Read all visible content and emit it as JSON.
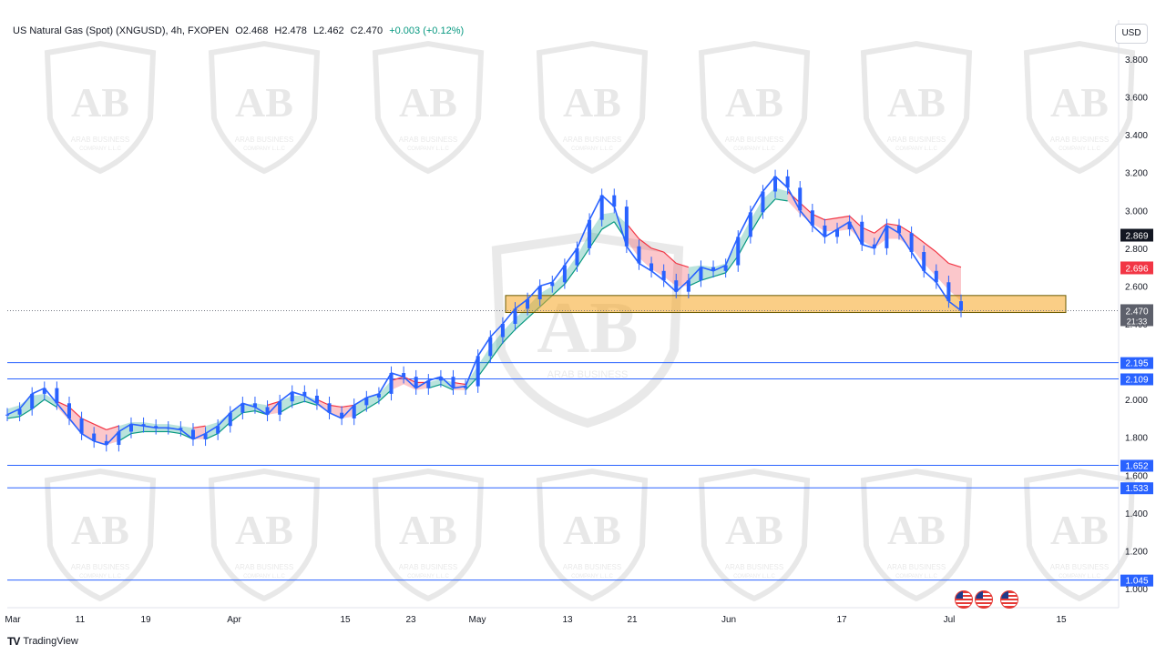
{
  "header": {
    "symbol": "US Natural Gas (Spot) (XNGUSD), 4h, FXOPEN",
    "open": "O2.468",
    "high": "H2.478",
    "low": "L2.462",
    "close": "C2.470",
    "change": "+0.003 (+0.12%)"
  },
  "currency_button": "USD",
  "branding": {
    "logo_text": "TV",
    "name": "TradingView"
  },
  "watermark": {
    "line1": "ARAB BUSINESS",
    "line2": "COMPANY L.L.C"
  },
  "events": [
    "us-flag-icon",
    "us-flag-icon",
    "us-flag-icon"
  ],
  "colors": {
    "candle": "#2962ff",
    "cloud_bull": "#089981",
    "cloud_bear": "#f23645",
    "zone": "#f5a623",
    "hline": "#2962ff",
    "last_price_bg": "#131722"
  },
  "chart_data": {
    "type": "line",
    "title": "",
    "xlabel": "",
    "ylabel": "",
    "ylim": [
      0.93,
      3.95
    ],
    "y_ticks": [
      "3.800",
      "3.600",
      "3.400",
      "3.200",
      "3.000",
      "2.800",
      "2.600",
      "2.400",
      "2.200",
      "2.000",
      "1.800",
      "1.600",
      "1.400",
      "1.200",
      "1.000"
    ],
    "x_ticks": [
      "Mar",
      "11",
      "19",
      "Apr",
      "15",
      "23",
      "May",
      "13",
      "21",
      "Jun",
      "17",
      "Jul",
      "15"
    ],
    "series": [
      {
        "values": [
          1.92,
          1.95,
          2.03,
          2.06,
          1.98,
          1.9,
          1.82,
          1.78,
          1.76,
          1.83,
          1.87,
          1.86,
          1.85,
          1.85,
          1.84,
          1.79,
          1.82,
          1.86,
          1.93,
          1.98,
          1.96,
          1.92,
          1.99,
          2.04,
          2.02,
          1.98,
          1.93,
          1.9,
          1.97,
          2.01,
          2.03,
          2.14,
          2.12,
          2.06,
          2.1,
          2.12,
          2.06,
          2.07,
          2.23,
          2.33,
          2.4,
          2.48,
          2.53,
          2.6,
          2.62,
          2.71,
          2.8,
          2.95,
          3.08,
          3.02,
          2.81,
          2.72,
          2.68,
          2.63,
          2.57,
          2.63,
          2.7,
          2.68,
          2.71,
          2.86,
          2.99,
          3.1,
          3.18,
          3.12,
          3.0,
          2.92,
          2.86,
          2.9,
          2.94,
          2.82,
          2.8,
          2.92,
          2.88,
          2.78,
          2.68,
          2.62,
          2.52,
          2.47
        ]
      }
    ],
    "cloud_upper": [
      1.95,
      1.97,
      2.02,
      2.03,
      1.99,
      1.96,
      1.9,
      1.87,
      1.84,
      1.86,
      1.88,
      1.88,
      1.87,
      1.87,
      1.86,
      1.85,
      1.86,
      1.88,
      1.93,
      1.97,
      1.98,
      1.97,
      1.99,
      2.02,
      2.02,
      2.0,
      1.97,
      1.96,
      1.97,
      2.01,
      2.03,
      2.1,
      2.12,
      2.09,
      2.09,
      2.11,
      2.09,
      2.08,
      2.18,
      2.28,
      2.36,
      2.43,
      2.49,
      2.56,
      2.6,
      2.67,
      2.76,
      2.88,
      2.98,
      2.99,
      2.93,
      2.85,
      2.8,
      2.78,
      2.72,
      2.7,
      2.71,
      2.7,
      2.72,
      2.83,
      2.95,
      3.06,
      3.12,
      3.1,
      3.04,
      2.98,
      2.95,
      2.96,
      2.97,
      2.91,
      2.88,
      2.93,
      2.92,
      2.88,
      2.83,
      2.78,
      2.72,
      2.7
    ],
    "cloud_lower": [
      1.9,
      1.91,
      1.95,
      2.0,
      1.96,
      1.89,
      1.82,
      1.78,
      1.76,
      1.78,
      1.82,
      1.83,
      1.83,
      1.83,
      1.82,
      1.79,
      1.79,
      1.82,
      1.88,
      1.93,
      1.94,
      1.92,
      1.93,
      1.97,
      1.99,
      1.97,
      1.93,
      1.9,
      1.91,
      1.95,
      1.99,
      2.05,
      2.08,
      2.05,
      2.06,
      2.08,
      2.05,
      2.05,
      2.12,
      2.21,
      2.3,
      2.37,
      2.43,
      2.49,
      2.55,
      2.61,
      2.7,
      2.8,
      2.9,
      2.94,
      2.84,
      2.75,
      2.69,
      2.65,
      2.6,
      2.6,
      2.63,
      2.65,
      2.67,
      2.76,
      2.88,
      2.99,
      3.06,
      3.05,
      2.98,
      2.93,
      2.89,
      2.89,
      2.9,
      2.84,
      2.8,
      2.85,
      2.85,
      2.8,
      2.72,
      2.65,
      2.58,
      2.52
    ],
    "cloud_trend": [
      "bull",
      "bull",
      "bull",
      "bull",
      "bear",
      "bear",
      "bear",
      "bear",
      "bear",
      "bull",
      "bull",
      "bull",
      "bull",
      "bull",
      "bull",
      "bear",
      "bull",
      "bull",
      "bull",
      "bull",
      "bull",
      "bear",
      "bull",
      "bull",
      "bull",
      "bear",
      "bear",
      "bear",
      "bull",
      "bull",
      "bull",
      "bear",
      "bear",
      "bear",
      "bull",
      "bull",
      "bear",
      "bull",
      "bull",
      "bull",
      "bull",
      "bull",
      "bull",
      "bull",
      "bull",
      "bull",
      "bull",
      "bull",
      "bull",
      "bull",
      "bear",
      "bear",
      "bear",
      "bear",
      "bear",
      "bull",
      "bull",
      "bull",
      "bull",
      "bull",
      "bull",
      "bull",
      "bull",
      "bear",
      "bear",
      "bear",
      "bear",
      "bear",
      "bear",
      "bear",
      "bear",
      "bear",
      "bear",
      "bear",
      "bear",
      "bear",
      "bear",
      "bear"
    ],
    "horizontal_lines": [
      {
        "value": 2.195,
        "label": "2.195"
      },
      {
        "value": 2.109,
        "label": "2.109"
      },
      {
        "value": 1.652,
        "label": "1.652"
      },
      {
        "value": 1.533,
        "label": "1.533"
      },
      {
        "value": 1.045,
        "label": "1.045"
      }
    ],
    "zone": {
      "from_index": 40,
      "to_index": 95,
      "low": 2.46,
      "high": 2.55
    },
    "price_labels": [
      {
        "value": 2.869,
        "label": "2.869",
        "style": "dark"
      },
      {
        "value": 2.696,
        "label": "2.696",
        "style": "red"
      },
      {
        "value": 2.47,
        "label": "2.470",
        "style": "grey",
        "sub": "21:33"
      }
    ],
    "last_price": 2.47,
    "grid": false,
    "legend": "none"
  }
}
